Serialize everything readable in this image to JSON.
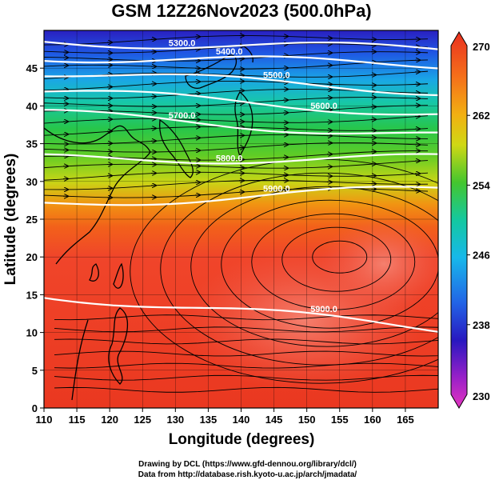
{
  "chart_data": {
    "type": "heatmap",
    "title": "GSM 12Z26Nov2023 (500.0hPa)",
    "xlabel": "Longitude (degrees)",
    "ylabel": "Latitude  (degrees)",
    "xlim": [
      110,
      170
    ],
    "ylim": [
      0,
      50
    ],
    "xticks": [
      "110",
      "115",
      "120",
      "125",
      "130",
      "135",
      "140",
      "145",
      "150",
      "155",
      "160",
      "165"
    ],
    "yticks": [
      "0",
      "5",
      "10",
      "15",
      "20",
      "25",
      "30",
      "35",
      "40",
      "45"
    ],
    "colorbar": {
      "min": 230,
      "max": 270,
      "labels": [
        "270",
        "262",
        "254",
        "246",
        "238",
        "230"
      ],
      "label_values": [
        270,
        262,
        254,
        246,
        238,
        230
      ]
    },
    "contours": [
      {
        "label": "5300.0",
        "lat_west": 48.5,
        "lat_east": 47.5
      },
      {
        "label": "5400.0",
        "lat_west": 46.5,
        "lat_east": 45.5
      },
      {
        "label": "5500.0",
        "lat_west": 44.5,
        "lat_east": 42.0
      },
      {
        "label": "5600.0",
        "lat_west": 42.0,
        "lat_east": 39.0
      },
      {
        "label": "5700.0",
        "lat_west": 39.0,
        "lat_east": 36.0
      },
      {
        "label": "5800.0",
        "lat_west": 33.0,
        "lat_east": 33.0
      },
      {
        "label": "5900.0",
        "lat_west": 27.0,
        "lat_east": 29.0
      },
      {
        "label": "5900.0",
        "lat_west": 15.0,
        "lat_east": 10.5
      }
    ],
    "wind_field": "westerly streamlines north of 30N, anticyclonic circulation centred near 20N 155E",
    "grid": true
  },
  "credits": {
    "line1": "Drawing by DCL (https://www.gfd-dennou.org/library/dcl/)",
    "line2": "Data from http://database.rish.kyoto-u.ac.jp/arch/jmadata/"
  }
}
